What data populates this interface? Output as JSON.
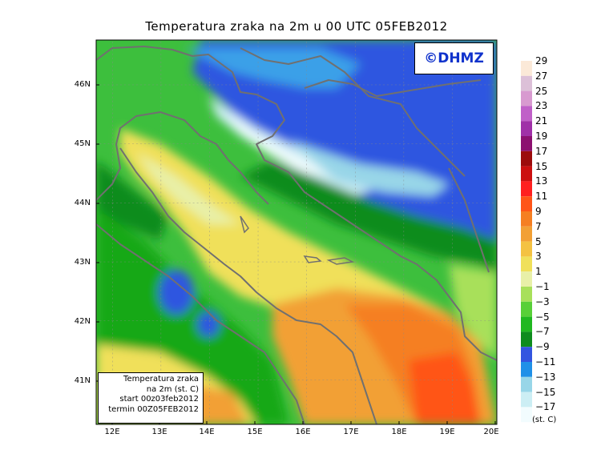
{
  "title": "Temperatura zraka na 2m u 00 UTC 05FEB2012",
  "logo_text": "©DHMZ",
  "info_box": {
    "line1": "Temperatura zraka",
    "line2": "na 2m (st. C)",
    "line3": "start 00z03feb2012",
    "line4": "termin 00Z05FEB2012"
  },
  "lat_labels": [
    "46N",
    "45N",
    "44N",
    "43N",
    "42N",
    "41N"
  ],
  "lon_labels": [
    "12E",
    "13E",
    "14E",
    "15E",
    "16E",
    "17E",
    "18E",
    "19E",
    "20E"
  ],
  "colorbar": {
    "unit": "(st. C)",
    "labels": [
      "29",
      "27",
      "25",
      "23",
      "21",
      "19",
      "17",
      "15",
      "13",
      "11",
      "9",
      "7",
      "5",
      "3",
      "1",
      "−1",
      "−3",
      "−5",
      "−7",
      "−9",
      "−11",
      "−13",
      "−15",
      "−17"
    ],
    "colors_top_to_bottom": [
      "#fbe9d8",
      "#dcc0d8",
      "#d89ad0",
      "#c060c8",
      "#a030a8",
      "#8c1070",
      "#9c0c0c",
      "#cc1010",
      "#ff2020",
      "#ff5518",
      "#f57f22",
      "#f2a035",
      "#f4c242",
      "#f0e05a",
      "#e8f0a8",
      "#a8e05a",
      "#58d038",
      "#20b820",
      "#0e8c1e",
      "#3355e0",
      "#2090e8",
      "#98d6e8",
      "#cceef4",
      "#f2fcfe"
    ]
  },
  "legend_accent": "#1133cc"
}
